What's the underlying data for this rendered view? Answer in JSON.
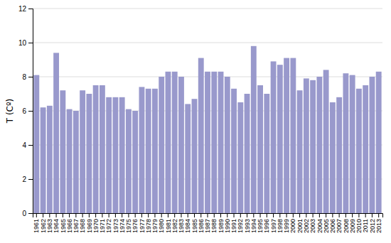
{
  "chart_data": {
    "type": "bar",
    "y_label": "T (Cº)",
    "categories": [
      "1961",
      "1962",
      "1963",
      "1964",
      "1965",
      "1966",
      "1967",
      "1968",
      "1969",
      "1970",
      "1971",
      "1972",
      "1973",
      "1974",
      "1975",
      "1976",
      "1977",
      "1978",
      "1979",
      "1980",
      "1981",
      "1982",
      "1983",
      "1984",
      "1985",
      "1986",
      "1987",
      "1988",
      "1989",
      "1990",
      "1991",
      "1992",
      "1993",
      "1994",
      "1995",
      "1996",
      "1997",
      "1998",
      "1999",
      "2000",
      "2001",
      "2002",
      "2003",
      "2004",
      "2005",
      "2006",
      "2007",
      "2008",
      "2009",
      "2010",
      "2011",
      "2012",
      "2013"
    ],
    "values": [
      8.1,
      6.2,
      6.3,
      9.4,
      7.2,
      6.1,
      6.0,
      7.2,
      7.0,
      7.5,
      7.5,
      6.8,
      6.8,
      6.8,
      6.1,
      6.0,
      7.4,
      7.3,
      7.3,
      8.0,
      8.3,
      8.3,
      8.0,
      6.4,
      6.7,
      9.1,
      8.3,
      8.3,
      8.3,
      8.0,
      7.3,
      6.5,
      7.0,
      9.8,
      7.5,
      7.0,
      8.9,
      8.7,
      9.1,
      9.1,
      7.2,
      7.9,
      7.8,
      8.0,
      8.4,
      6.5,
      6.8,
      8.2,
      8.1,
      7.3,
      7.5,
      8.0,
      8.3
    ],
    "color": "#9999cc",
    "ylim": [
      0,
      12
    ],
    "yticks": [
      0,
      2,
      4,
      6,
      8,
      10,
      12
    ],
    "grid": true
  }
}
